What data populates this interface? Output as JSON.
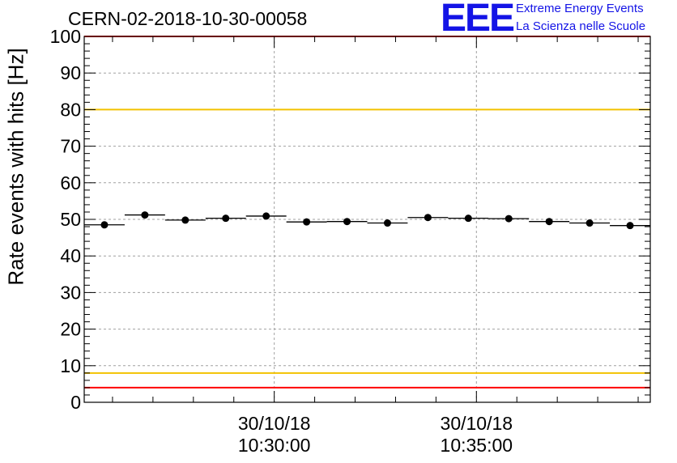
{
  "chart_data": {
    "type": "scatter",
    "title": "CERN-02-2018-10-30-00058",
    "ylabel": "Rate events with hits [Hz]",
    "xlabel": "",
    "ylim": [
      0,
      100
    ],
    "yticks": [
      0,
      10,
      20,
      30,
      40,
      50,
      60,
      70,
      80,
      90,
      100
    ],
    "xtick_labels": [
      {
        "date": "30/10/18",
        "time": "10:30:00",
        "minute": 30
      },
      {
        "date": "30/10/18",
        "time": "10:35:00",
        "minute": 35
      }
    ],
    "xlim_minutes": [
      25.3,
      39.3
    ],
    "grid": true,
    "bin_width_minutes": 1,
    "x_minutes": [
      25.8,
      26.8,
      27.8,
      28.8,
      29.8,
      30.8,
      31.8,
      32.8,
      33.8,
      34.8,
      35.8,
      36.8,
      37.8,
      38.8
    ],
    "values": [
      48.5,
      51.2,
      49.8,
      50.3,
      50.9,
      49.3,
      49.4,
      49.0,
      50.5,
      50.3,
      50.2,
      49.4,
      49.0,
      48.3
    ],
    "reference_lines": [
      {
        "y": 100,
        "color": "#ff0000"
      },
      {
        "y": 80,
        "color": "#f2c200"
      },
      {
        "y": 8,
        "color": "#f2c200"
      },
      {
        "y": 4,
        "color": "#ff0000"
      }
    ]
  },
  "logo": {
    "mark": "EEE",
    "line1": "Extreme Energy Events",
    "line2": "La Scienza nelle Scuole",
    "color": "#1414e6"
  }
}
